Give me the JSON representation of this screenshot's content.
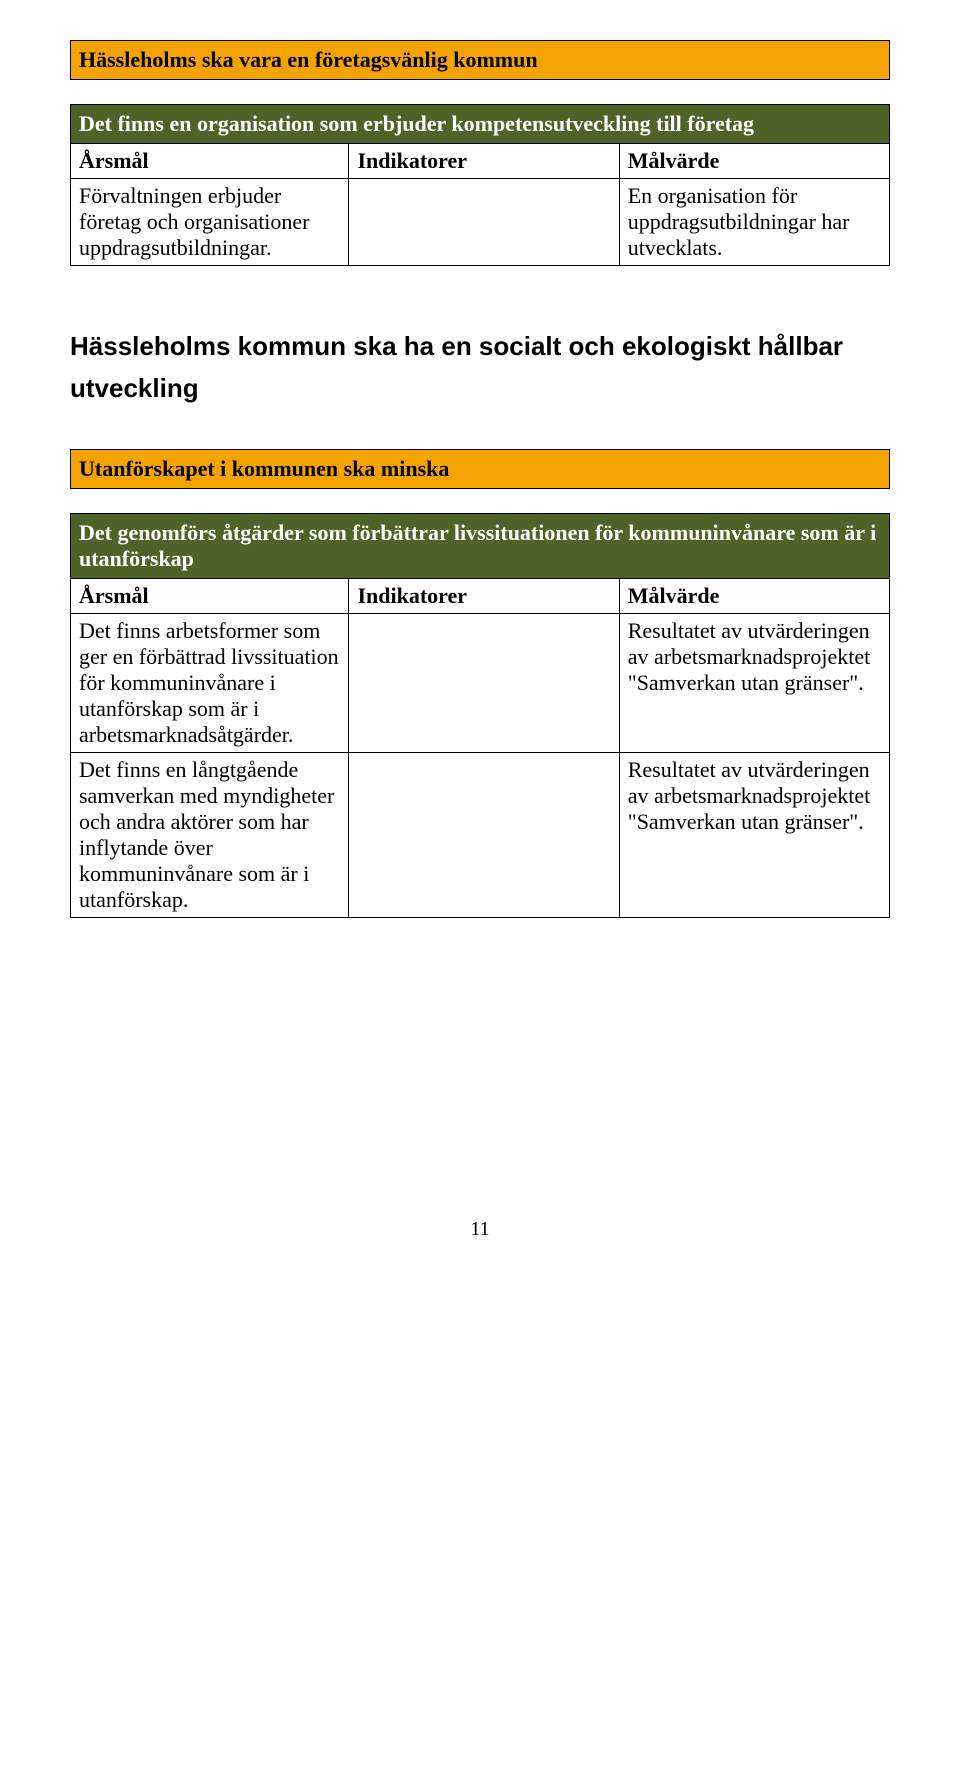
{
  "section1": {
    "title": "Hässleholms ska vara en företagsvänlig kommun",
    "greenHeader": "Det finns en organisation som erbjuder kompetensutveckling till företag",
    "headers": {
      "c1": "Årsmål",
      "c2": "Indikatorer",
      "c3": "Målvärde"
    },
    "rows": [
      {
        "c1": "Förvaltningen erbjuder företag och organisationer uppdragsutbildningar.",
        "c2": "",
        "c3": "En organisation för uppdragsutbildningar har utvecklats."
      }
    ]
  },
  "bigHeading": "Hässleholms kommun ska ha en socialt och ekologiskt hållbar utveckling",
  "section2": {
    "title": "Utanförskapet i kommunen ska minska",
    "greenHeader": "Det genomförs åtgärder som förbättrar livssituationen för kommuninvånare som är i utanförskap",
    "headers": {
      "c1": "Årsmål",
      "c2": "Indikatorer",
      "c3": "Målvärde"
    },
    "rows": [
      {
        "c1": "Det finns arbetsformer som ger en förbättrad livssituation för kommuninvånare i utanförskap som är i arbetsmarknadsåtgärder.",
        "c2": "",
        "c3": "Resultatet av utvärderingen av arbetsmarknadsprojektet \"Samverkan utan gränser\"."
      },
      {
        "c1": "Det finns en långtgående samverkan med myndigheter och andra aktörer som har inflytande över kommuninvånare som är i utanförskap.",
        "c2": "",
        "c3": "Resultatet av utvärderingen av arbetsmarknadsprojektet \"Samverkan utan gränser\"."
      }
    ]
  },
  "pageNumber": "11",
  "colors": {
    "orange": "#f4a300",
    "green": "#4f6228",
    "white": "#ffffff",
    "black": "#000000"
  }
}
